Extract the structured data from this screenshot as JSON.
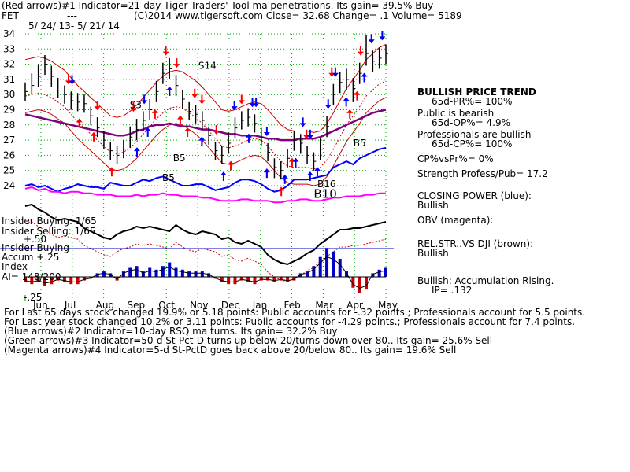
{
  "header": {
    "line1": "(Red arrows)#1 Indicator=21-day Tiger Traders' Tool ma penetrations. Its gain= 39.5% Buy",
    "ticker": "FET",
    "dash": "---",
    "info": "(C)2014 www.tigersoft.com     Close=  32.68  Change= .1 Volume= 5189",
    "date_range": "5/ 24/ 13-  5/ 21/ 14"
  },
  "chart_data": {
    "type": "line",
    "title": "",
    "x_axis": {
      "tick_labels": [
        "Jun",
        "Jul",
        "Aug",
        "Sep",
        "Oct",
        "Nov",
        "Dec",
        "Jan",
        "Feb",
        "Mar",
        "Apr",
        "May"
      ]
    },
    "y_axis": {
      "tick_labels": [
        "34",
        "33",
        "32",
        "31",
        "30",
        "29",
        "28",
        "27",
        "26",
        "25",
        "24"
      ],
      "range": [
        24,
        34
      ]
    },
    "grid": true,
    "price_close": [
      30.2,
      30.6,
      31.2,
      32.0,
      31.2,
      30.5,
      30.0,
      29.6,
      29.5,
      29.4,
      28.6,
      27.8,
      27.0,
      26.3,
      26.0,
      26.4,
      27.2,
      27.7,
      28.3,
      29.0,
      30.2,
      31.4,
      31.7,
      30.6,
      29.7,
      28.9,
      28.7,
      28.3,
      27.3,
      26.3,
      26.0,
      26.8,
      27.8,
      28.3,
      28.5,
      28.1,
      27.2,
      26.2,
      25.2,
      25.0,
      25.8,
      27.0,
      26.8,
      26.0,
      25.6,
      26.4,
      27.9,
      30.0,
      30.8,
      31.0,
      30.4,
      31.4,
      32.7,
      32.2,
      32.4,
      32.7
    ],
    "price_high": [
      30.8,
      31.4,
      32.0,
      32.6,
      31.9,
      31.1,
      30.6,
      30.2,
      30.1,
      30.0,
      29.2,
      28.5,
      27.6,
      26.9,
      26.6,
      27.0,
      27.9,
      28.4,
      28.9,
      29.7,
      30.9,
      32.1,
      32.4,
      31.3,
      30.3,
      29.5,
      29.3,
      28.9,
      27.9,
      26.9,
      26.6,
      27.5,
      28.5,
      28.9,
      29.1,
      28.7,
      27.8,
      26.8,
      25.8,
      25.6,
      26.4,
      27.6,
      27.4,
      26.6,
      26.2,
      27.1,
      28.6,
      30.7,
      31.5,
      31.7,
      31.1,
      32.1,
      33.9,
      32.9,
      33.1,
      33.3
    ],
    "price_low": [
      29.6,
      30.0,
      30.5,
      31.3,
      30.5,
      29.8,
      29.4,
      29.0,
      28.9,
      28.8,
      28.0,
      27.2,
      26.4,
      25.7,
      25.4,
      25.8,
      26.5,
      27.0,
      27.6,
      28.3,
      29.5,
      30.7,
      31.0,
      29.9,
      29.1,
      28.3,
      28.1,
      27.7,
      26.7,
      25.7,
      25.4,
      26.1,
      27.1,
      27.7,
      27.9,
      27.5,
      26.6,
      25.6,
      24.5,
      24.4,
      25.2,
      26.3,
      26.1,
      25.4,
      25.0,
      25.7,
      27.2,
      29.3,
      30.1,
      30.3,
      29.5,
      30.7,
      31.9,
      31.5,
      31.7,
      32.0
    ],
    "ma_21d": [
      30.7,
      30.8,
      30.9,
      30.8,
      30.6,
      30.3,
      30.0,
      29.5,
      29.0,
      28.6,
      28.2,
      27.8,
      27.4,
      27.0,
      26.9,
      27.0,
      27.3,
      27.7,
      28.2,
      28.7,
      29.2,
      29.6,
      29.9,
      30.0,
      29.9,
      29.6,
      29.3,
      28.9,
      28.4,
      27.9,
      27.4,
      27.3,
      27.4,
      27.6,
      27.8,
      27.9,
      27.8,
      27.4,
      26.9,
      26.4,
      26.1,
      26.0,
      26.0,
      26.0,
      25.9,
      26.0,
      26.5,
      27.2,
      28.0,
      28.8,
      29.4,
      30.0,
      30.7,
      31.1,
      31.5,
      31.7
    ],
    "ma_65d": [
      28.7,
      28.6,
      28.5,
      28.4,
      28.3,
      28.2,
      28.1,
      28.0,
      27.9,
      27.8,
      27.7,
      27.6,
      27.5,
      27.4,
      27.3,
      27.3,
      27.4,
      27.6,
      27.7,
      27.9,
      28.0,
      28.0,
      28.1,
      28.0,
      27.9,
      27.9,
      27.8,
      27.7,
      27.7,
      27.6,
      27.5,
      27.4,
      27.4,
      27.3,
      27.3,
      27.3,
      27.2,
      27.1,
      27.1,
      27.0,
      27.0,
      27.0,
      27.1,
      27.1,
      27.1,
      27.2,
      27.4,
      27.6,
      27.8,
      28.0,
      28.2,
      28.4,
      28.6,
      28.8,
      28.9,
      29.0
    ],
    "series_labels": [
      {
        "text": "S3",
        "x": 0.29,
        "y": 29.1
      },
      {
        "text": "S14",
        "x": 0.48,
        "y": 31.7
      },
      {
        "text": "B5",
        "x": 0.41,
        "y": 25.6
      },
      {
        "text": "B5",
        "x": 0.38,
        "y": 24.3
      },
      {
        "text": "B5",
        "x": 0.91,
        "y": 26.6
      },
      {
        "text": "B16",
        "x": 0.81,
        "y": 23.9
      },
      {
        "text": "B10",
        "x": 0.8,
        "y": 23.2
      }
    ],
    "red_up_arrows_x": [
      0.15,
      0.19,
      0.24,
      0.36,
      0.4,
      0.43,
      0.45,
      0.49,
      0.57,
      0.67,
      0.71,
      0.74,
      0.9,
      0.92
    ],
    "red_down_arrows_x": [
      0.12,
      0.2,
      0.3,
      0.39,
      0.42,
      0.47,
      0.49,
      0.53,
      0.6,
      0.78,
      0.85,
      0.93
    ],
    "blue_up_arrows_x": [
      0.31,
      0.34,
      0.4,
      0.49,
      0.55,
      0.62,
      0.67,
      0.72,
      0.75,
      0.79,
      0.81,
      0.89,
      0.94
    ],
    "blue_down_arrows_x": [
      0.13,
      0.33,
      0.58,
      0.63,
      0.64,
      0.67,
      0.77,
      0.79,
      0.84,
      0.86,
      0.96,
      0.99
    ]
  },
  "indicators": {
    "cp_line": [
      24.0,
      24.1,
      23.9,
      24.0,
      23.8,
      23.6,
      23.8,
      23.9,
      24.1,
      24.0,
      23.9,
      23.9,
      23.8,
      24.2,
      24.1,
      24.0,
      24.0,
      24.2,
      24.4,
      24.3,
      24.5,
      24.6,
      24.4,
      24.2,
      24.0,
      24.0,
      24.1,
      24.1,
      23.9,
      23.7,
      23.8,
      23.9,
      24.2,
      24.4,
      24.4,
      24.3,
      24.1,
      23.8,
      23.6,
      23.7,
      24.0,
      24.4,
      24.4,
      24.4,
      24.5,
      24.6,
      24.7,
      25.2,
      25.4,
      25.6,
      25.4,
      25.8,
      26.0,
      26.2,
      26.4,
      26.5
    ],
    "obv_line": [
      23.8,
      23.9,
      23.7,
      23.8,
      23.6,
      23.6,
      23.5,
      23.6,
      23.6,
      23.5,
      23.5,
      23.4,
      23.4,
      23.4,
      23.3,
      23.3,
      23.3,
      23.4,
      23.3,
      23.4,
      23.4,
      23.5,
      23.4,
      23.4,
      23.3,
      23.3,
      23.3,
      23.2,
      23.2,
      23.1,
      23.0,
      23.0,
      23.0,
      23.1,
      23.1,
      23.0,
      23.0,
      23.0,
      22.9,
      22.9,
      23.0,
      23.0,
      23.1,
      23.1,
      23.0,
      23.0,
      23.1,
      23.2,
      23.2,
      23.3,
      23.3,
      23.3,
      23.4,
      23.4,
      23.5,
      23.5
    ],
    "insider_black": [
      22.7,
      22.8,
      22.5,
      22.3,
      22.0,
      21.8,
      21.9,
      21.8,
      21.7,
      21.3,
      21.1,
      20.9,
      20.7,
      20.6,
      20.9,
      21.1,
      21.2,
      21.4,
      21.3,
      21.4,
      21.3,
      21.2,
      21.1,
      21.5,
      21.2,
      21.0,
      20.9,
      21.1,
      21.0,
      20.9,
      20.6,
      20.7,
      20.4,
      20.3,
      20.5,
      20.3,
      20.1,
      19.6,
      19.3,
      19.1,
      19.0,
      19.2,
      19.4,
      19.7,
      19.9,
      20.3,
      20.6,
      20.9,
      21.2,
      21.2,
      21.3,
      21.3,
      21.4,
      21.5,
      21.6,
      21.7
    ],
    "accum_hist": [
      -3,
      -4,
      -3,
      -5,
      -4,
      -2,
      -3,
      -4,
      -4,
      -2,
      -1,
      2,
      3,
      2,
      -2,
      3,
      5,
      6,
      3,
      5,
      4,
      6,
      8,
      5,
      4,
      3,
      3,
      3,
      2,
      -1,
      -3,
      -4,
      -4,
      -2,
      -3,
      -4,
      -2,
      -2,
      -3,
      -2,
      -3,
      -2,
      2,
      3,
      6,
      11,
      16,
      14,
      10,
      3,
      -6,
      -9,
      -7,
      2,
      4,
      5
    ]
  },
  "insider": {
    "buying": "Insider Buying: 1/65",
    "selling": "Insider Selling: 1/65",
    "plus50": "+.50",
    "label1": "Insider Buying",
    "label2": "Accum   +.25",
    "label3": "Index",
    "ai": "AI= 148/200",
    "minus25": "-.25"
  },
  "right_panel": {
    "trend": "BULLISH PRICE TREND",
    "pr": "65d-PR%= 100%",
    "public": "Public is bearish",
    "op": "65d-OP%= 4.9%",
    "pros": "Professionals are bullish",
    "cp": "65d-CP%= 100%",
    "cpvspr": "CP%vsPr%=  0%",
    "strength": "Strength Profess/Pub= 17.2",
    "closing_power": "CLOSING POWER (blue):",
    "closing_power_val": "Bullish",
    "obv": "OBV (magenta):",
    "relstr": "REL.STR..VS DJI (brown):",
    "relstr_val": "Bullish",
    "accum": "Bullish: Accumulation Rising.",
    "ip": "IP=  .132"
  },
  "footer": {
    "l1": "For Last 65 days stock changed  19.9% or  5.18 points:  Public accounts for -.32 points.;  Professionals account for  5.5 points.",
    "l2": "For Last year stock changed  10.2% or  3.11 points:  Public accounts for -4.29 points.;  Professionals account for  7.4 points.",
    "l3": "(Blue arrows)#2 Indicator=10-day RSQ ma turns. Its gain= 32.2% Buy",
    "l4": "(Green arrows)#3 Indicator=50-d St-Pct-D turns up below 20/turns down over 80.. Its gain= 25.6% Sell",
    "l5": "(Magenta arrows)#4 Indicator=5-d St-PctD goes back above 20/below 80.. Its gain= 19.6% Sell"
  },
  "colors": {
    "price": "#000000",
    "band": "#cc0000",
    "ma65": "#800080",
    "cp": "#0000ff",
    "obv": "#ff00ff",
    "grid": "#00aa00",
    "accum": "#0000cc",
    "accum_neg": "#cc0000"
  }
}
